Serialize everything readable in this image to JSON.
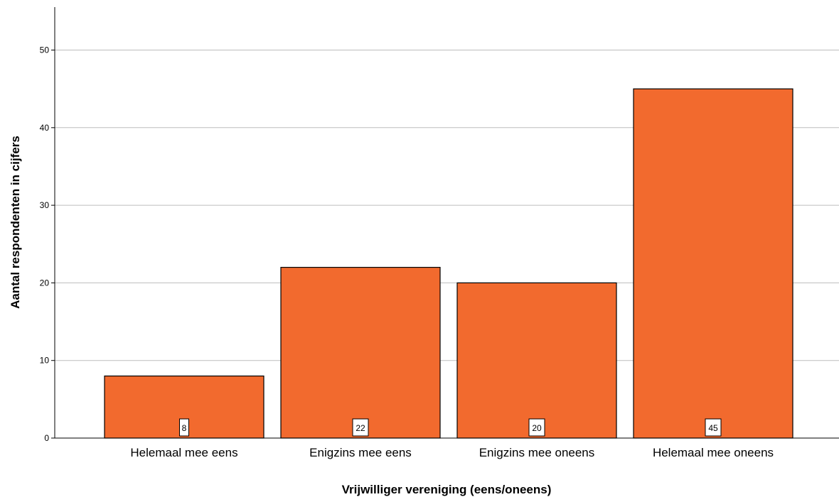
{
  "chart_data": {
    "type": "bar",
    "categories": [
      "Helemaal mee eens",
      "Enigzins mee eens",
      "Enigzins mee oneens",
      "Helemaal mee oneens"
    ],
    "values": [
      8,
      22,
      20,
      45
    ],
    "data_labels": [
      "8",
      "22",
      "20",
      "45"
    ],
    "title": "",
    "xlabel": "Vrijwilliger vereniging (eens/oneens)",
    "ylabel": "Aantal respondenten in cijfers",
    "ylim": [
      0,
      55
    ],
    "yticks": [
      "0",
      "10",
      "20",
      "30",
      "40",
      "50"
    ],
    "grid": true,
    "bar_color": "#f26a2e",
    "grid_color": "#bdbdbd"
  }
}
